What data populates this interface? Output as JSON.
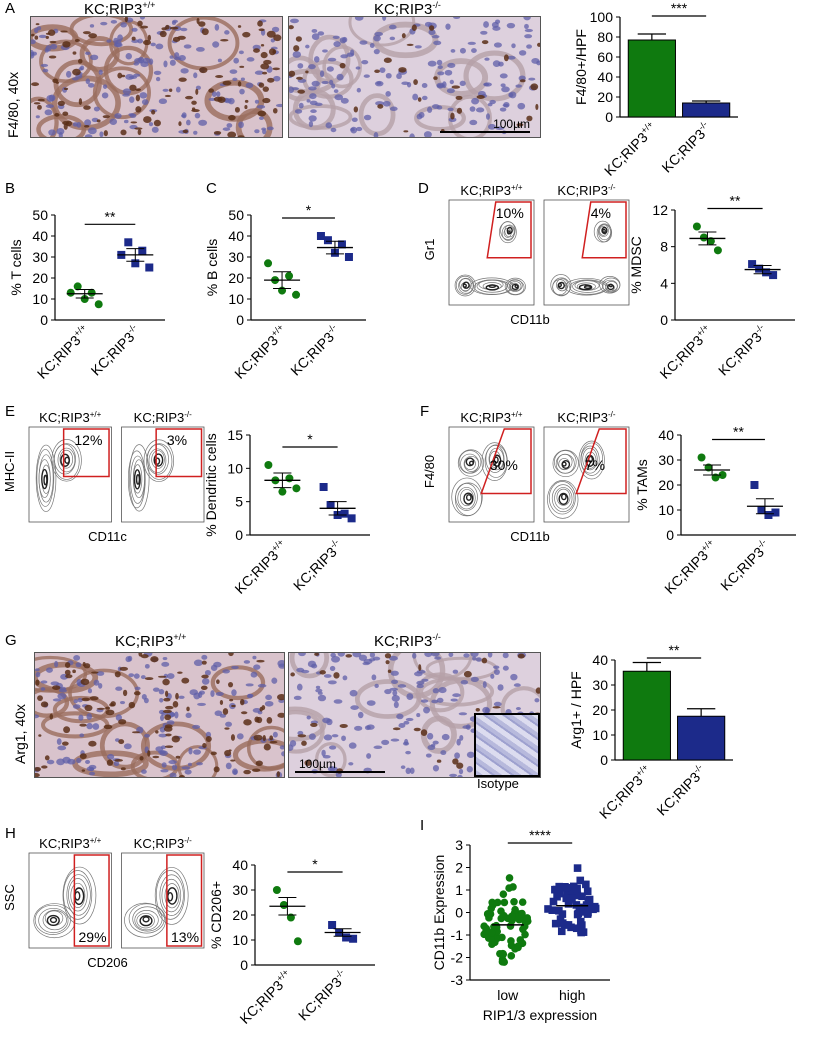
{
  "panel_letters": {
    "A": "A",
    "B": "B",
    "C": "C",
    "D": "D",
    "E": "E",
    "F": "F",
    "G": "G",
    "H": "H",
    "I": "I"
  },
  "genotypes": {
    "wt": "KC;RIP3",
    "wt_sup": "+/+",
    "ko": "KC;RIP3",
    "ko_sup": "-/-"
  },
  "colors": {
    "wt": "#0f7a0f",
    "ko": "#1c2a8a",
    "gate": "#d02020"
  },
  "panelA": {
    "stain": "F4/80, 40x",
    "scale": "100µm"
  },
  "panelG": {
    "stain": "Arg1, 40x",
    "scale": "100µm",
    "isotype": "Isotype"
  },
  "flowD": {
    "y": "Gr1",
    "x": "CD11b",
    "wt_pct": "10%",
    "ko_pct": "4%"
  },
  "flowE": {
    "y": "MHC-II",
    "x": "CD11c",
    "wt_pct": "12%",
    "ko_pct": "3%"
  },
  "flowF": {
    "y": "F4/80",
    "x": "CD11b",
    "wt_pct": "30%",
    "ko_pct": "7%"
  },
  "flowH": {
    "y": "SSC",
    "x": "CD206",
    "wt_pct": "29%",
    "ko_pct": "13%"
  },
  "chart_data": [
    {
      "id": "A",
      "type": "bar",
      "ylabel": "F4/80+/HPF",
      "ylim": [
        0,
        100
      ],
      "ticks": [
        0,
        20,
        40,
        60,
        80,
        100
      ],
      "categories": [
        "KC;RIP3+/+",
        "KC;RIP3-/-"
      ],
      "values": [
        77,
        14
      ],
      "errors": [
        6,
        2
      ],
      "significance": "***"
    },
    {
      "id": "B",
      "type": "scatter",
      "ylabel": "% T cells",
      "ylim": [
        0,
        50
      ],
      "ticks": [
        0,
        10,
        20,
        30,
        40,
        50
      ],
      "categories": [
        "KC;RIP3+/+",
        "KC;RIP3-/-"
      ],
      "means": [
        12.5,
        31
      ],
      "sems": [
        2,
        3
      ],
      "points": [
        [
          13,
          16,
          10,
          13,
          7.5
        ],
        [
          31,
          37,
          27,
          33,
          25
        ]
      ],
      "significance": "**"
    },
    {
      "id": "C",
      "type": "scatter",
      "ylabel": "% B cells",
      "ylim": [
        0,
        50
      ],
      "ticks": [
        0,
        10,
        20,
        30,
        40,
        50
      ],
      "categories": [
        "KC;RIP3+/+",
        "KC;RIP3-/-"
      ],
      "means": [
        19,
        34.5
      ],
      "sems": [
        4,
        3
      ],
      "points": [
        [
          27,
          19,
          14,
          21,
          12
        ],
        [
          40,
          38,
          32,
          36,
          30
        ]
      ],
      "significance": "*"
    },
    {
      "id": "D",
      "type": "scatter",
      "ylabel": "% MDSC",
      "ylim": [
        0,
        12
      ],
      "ticks": [
        0,
        4,
        8,
        12
      ],
      "categories": [
        "KC;RIP3+/+",
        "KC;RIP3-/-"
      ],
      "means": [
        8.9,
        5.5
      ],
      "sems": [
        0.7,
        0.45
      ],
      "points": [
        [
          10.2,
          9,
          8.6,
          7.6
        ],
        [
          6.1,
          5.6,
          5.2,
          4.9
        ]
      ],
      "significance": "**"
    },
    {
      "id": "E",
      "type": "scatter",
      "ylabel": "% Dendritic cells",
      "ylim": [
        0,
        15
      ],
      "ticks": [
        0,
        5,
        10,
        15
      ],
      "categories": [
        "KC;RIP3+/+",
        "KC;RIP3-/-"
      ],
      "means": [
        8.2,
        4
      ],
      "sems": [
        1.1,
        1
      ],
      "points": [
        [
          10.5,
          8.2,
          6.5,
          8.5,
          7
        ],
        [
          7.2,
          4.5,
          3,
          3.2,
          2.5
        ]
      ],
      "significance": "*"
    },
    {
      "id": "F",
      "type": "scatter",
      "ylabel": "% TAMs",
      "ylim": [
        0,
        40
      ],
      "ticks": [
        0,
        10,
        20,
        30,
        40
      ],
      "categories": [
        "KC;RIP3+/+",
        "KC;RIP3-/-"
      ],
      "means": [
        26,
        11.5
      ],
      "sems": [
        2,
        3
      ],
      "points": [
        [
          31,
          27,
          23,
          24
        ],
        [
          20,
          10,
          8,
          9
        ]
      ],
      "significance": "**"
    },
    {
      "id": "G",
      "type": "bar",
      "ylabel": "Arg1+ / HPF",
      "ylim": [
        0,
        40
      ],
      "ticks": [
        0,
        10,
        20,
        30,
        40
      ],
      "categories": [
        "KC;RIP3+/+",
        "KC;RIP3-/-"
      ],
      "values": [
        35.5,
        17.5
      ],
      "errors": [
        3.5,
        3
      ],
      "significance": "**"
    },
    {
      "id": "H",
      "type": "scatter",
      "ylabel": "% CD206+",
      "ylim": [
        0,
        40
      ],
      "ticks": [
        0,
        10,
        20,
        30,
        40
      ],
      "categories": [
        "KC;RIP3+/+",
        "KC;RIP3-/-"
      ],
      "means": [
        23.5,
        13
      ],
      "sems": [
        3.5,
        1.5
      ],
      "points": [
        [
          30,
          24,
          19,
          9.5
        ],
        [
          16,
          13,
          11,
          10.5
        ]
      ],
      "significance": "*"
    },
    {
      "id": "I",
      "type": "scatter",
      "ylabel": "CD11b Expression",
      "xlabel": "RIP1/3 expression",
      "ylim": [
        -3,
        3
      ],
      "ticks": [
        -3,
        -2,
        -1,
        0,
        1,
        2,
        3
      ],
      "categories": [
        "low",
        "high"
      ],
      "means": [
        -0.55,
        0.3
      ],
      "sems": [
        0.1,
        0.1
      ],
      "n": [
        70,
        60
      ],
      "significance": "****"
    }
  ]
}
